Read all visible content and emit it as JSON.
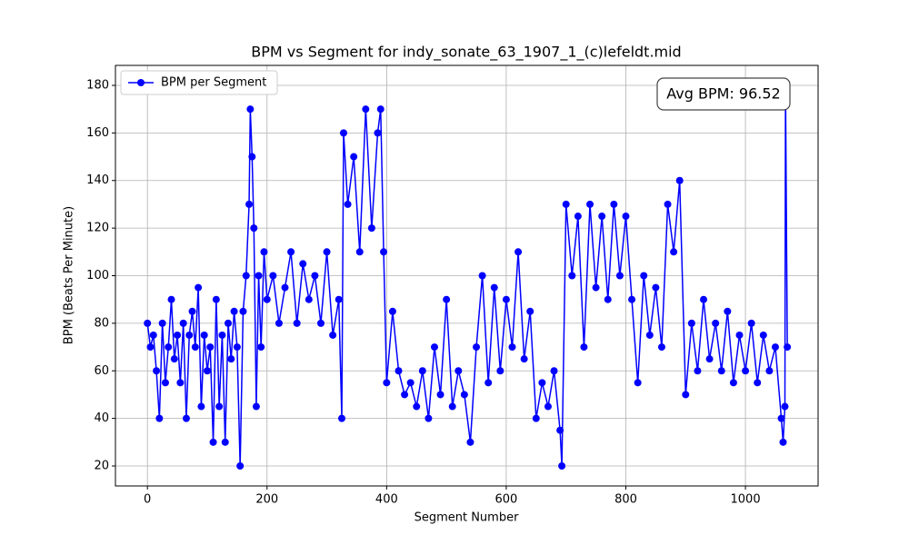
{
  "chart_data": {
    "type": "line",
    "title": "BPM vs Segment for indy_sonate_63_1907_1_(c)lefeldt.mid",
    "xlabel": "Segment Number",
    "ylabel": "BPM (Beats Per Minute)",
    "annotation": "Avg BPM: 96.52",
    "legend": "upper left",
    "grid": true,
    "xlim": [
      -53.5,
      1121.5
    ],
    "ylim": [
      11.6,
      188.4
    ],
    "xticks": [
      0,
      200,
      400,
      600,
      800,
      1000
    ],
    "yticks": [
      20,
      40,
      60,
      80,
      100,
      120,
      140,
      160,
      180
    ],
    "x": [
      0,
      5,
      10,
      15,
      20,
      25,
      30,
      35,
      40,
      45,
      50,
      55,
      60,
      65,
      70,
      75,
      80,
      85,
      90,
      95,
      100,
      105,
      110,
      115,
      120,
      125,
      130,
      135,
      140,
      145,
      150,
      155,
      160,
      165,
      170,
      172,
      175,
      178,
      182,
      186,
      190,
      195,
      200,
      210,
      220,
      230,
      240,
      250,
      260,
      270,
      280,
      290,
      300,
      310,
      320,
      325,
      328,
      335,
      345,
      355,
      365,
      375,
      385,
      390,
      395,
      400,
      410,
      420,
      430,
      440,
      450,
      460,
      470,
      480,
      490,
      500,
      510,
      520,
      530,
      540,
      550,
      560,
      570,
      580,
      590,
      600,
      610,
      620,
      630,
      640,
      650,
      660,
      670,
      680,
      690,
      693,
      700,
      710,
      720,
      730,
      740,
      750,
      760,
      770,
      780,
      790,
      800,
      810,
      820,
      830,
      840,
      850,
      860,
      870,
      880,
      890,
      900,
      910,
      920,
      930,
      940,
      950,
      960,
      970,
      980,
      990,
      1000,
      1010,
      1020,
      1030,
      1040,
      1050,
      1060,
      1063,
      1066,
      1067,
      1070
    ],
    "series": [
      {
        "name": "BPM per Segment",
        "color": "#0000ff",
        "values": [
          80,
          70,
          75,
          60,
          40,
          80,
          55,
          70,
          90,
          65,
          75,
          55,
          80,
          40,
          75,
          85,
          70,
          95,
          45,
          75,
          60,
          70,
          30,
          90,
          45,
          75,
          30,
          80,
          65,
          85,
          70,
          20,
          85,
          100,
          130,
          170,
          150,
          120,
          45,
          100,
          70,
          110,
          90,
          100,
          80,
          95,
          110,
          80,
          105,
          90,
          100,
          80,
          110,
          75,
          90,
          40,
          160,
          130,
          150,
          110,
          170,
          120,
          160,
          170,
          110,
          55,
          85,
          60,
          50,
          55,
          45,
          60,
          40,
          70,
          50,
          90,
          45,
          60,
          50,
          30,
          70,
          100,
          55,
          95,
          60,
          90,
          70,
          110,
          65,
          85,
          40,
          55,
          45,
          60,
          35,
          20,
          130,
          100,
          125,
          70,
          130,
          95,
          125,
          90,
          130,
          100,
          125,
          90,
          55,
          100,
          75,
          95,
          70,
          130,
          110,
          140,
          50,
          80,
          60,
          90,
          65,
          80,
          60,
          85,
          55,
          75,
          60,
          80,
          55,
          75,
          60,
          70,
          40,
          30,
          45,
          180,
          70
        ]
      }
    ]
  }
}
